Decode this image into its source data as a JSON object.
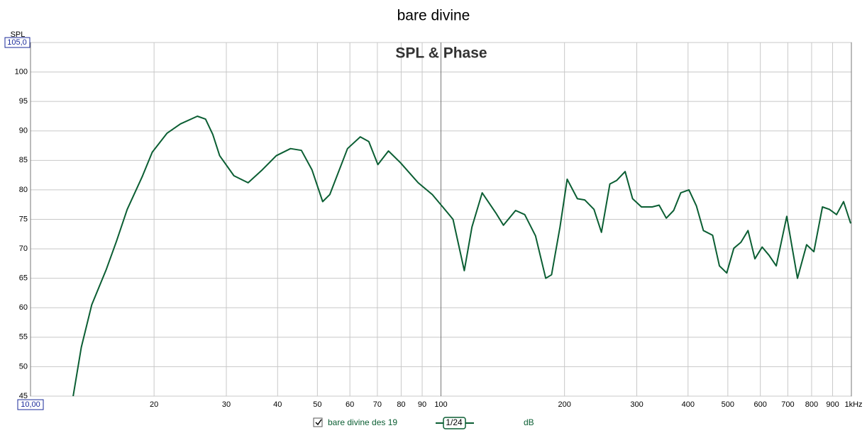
{
  "chart_data": {
    "type": "line",
    "title": "bare divine",
    "subtitle": "SPL & Phase",
    "ylabel": "SPL",
    "xlog": true,
    "grid": true,
    "xlim": [
      10,
      1000
    ],
    "ylim": [
      45,
      105
    ],
    "xticks": [
      {
        "value": 10,
        "label": "10,00"
      },
      20,
      30,
      40,
      50,
      60,
      70,
      80,
      90,
      100,
      200,
      300,
      400,
      500,
      600,
      700,
      800,
      900,
      {
        "value": 1000,
        "label": "1kHz"
      }
    ],
    "yticks": [
      45,
      50,
      55,
      60,
      65,
      70,
      75,
      80,
      85,
      90,
      95,
      100,
      {
        "value": 105,
        "label": "105,0"
      }
    ],
    "legend": {
      "smoothing": "1/24",
      "unit": "dB"
    },
    "series": [
      {
        "name": "bare divine des 19",
        "color": "#0b5e33",
        "x": [
          12.7,
          13.3,
          14.1,
          15.3,
          16.2,
          17.2,
          18.7,
          19.8,
          21.5,
          23.2,
          25.5,
          26.7,
          27.8,
          28.9,
          31.3,
          33.9,
          36.7,
          39.7,
          43.0,
          45.7,
          48.5,
          51.5,
          53.6,
          59.2,
          63.6,
          66.7,
          70.2,
          74.5,
          79.7,
          88.0,
          95.3,
          101,
          107,
          114,
          119,
          126,
          136,
          142,
          152,
          160,
          170,
          180,
          186,
          195,
          203,
          215,
          224,
          236,
          246,
          258,
          268,
          281,
          293,
          308,
          327,
          340,
          354,
          369,
          384,
          402,
          419,
          436,
          459,
          477,
          497,
          517,
          538,
          560,
          582,
          606,
          630,
          656,
          696,
          739,
          778,
          810,
          850,
          884,
          920,
          957,
          996
        ],
        "values": [
          45,
          53.3,
          60.5,
          66.5,
          71.3,
          76.7,
          82.2,
          86.4,
          89.6,
          91.2,
          92.5,
          92.0,
          89.4,
          85.8,
          82.4,
          81.2,
          83.4,
          85.8,
          87.0,
          86.7,
          83.4,
          78.0,
          79.2,
          87.0,
          89.0,
          88.2,
          84.3,
          86.6,
          84.6,
          81.2,
          79.2,
          77.1,
          75.0,
          66.3,
          73.7,
          79.5,
          76.1,
          74.0,
          76.5,
          75.8,
          72.2,
          65.0,
          65.6,
          73.7,
          81.8,
          78.5,
          78.3,
          76.7,
          72.8,
          81.0,
          81.6,
          83.1,
          78.5,
          77.1,
          77.1,
          77.4,
          75.2,
          76.5,
          79.5,
          80.0,
          77.3,
          73.1,
          72.3,
          67.1,
          65.9,
          70.1,
          71.1,
          73.1,
          68.3,
          70.3,
          68.9,
          67.1,
          75.5,
          65.0,
          70.7,
          69.5,
          77.1,
          76.7,
          75.8,
          78.0,
          74.3
        ]
      }
    ]
  }
}
